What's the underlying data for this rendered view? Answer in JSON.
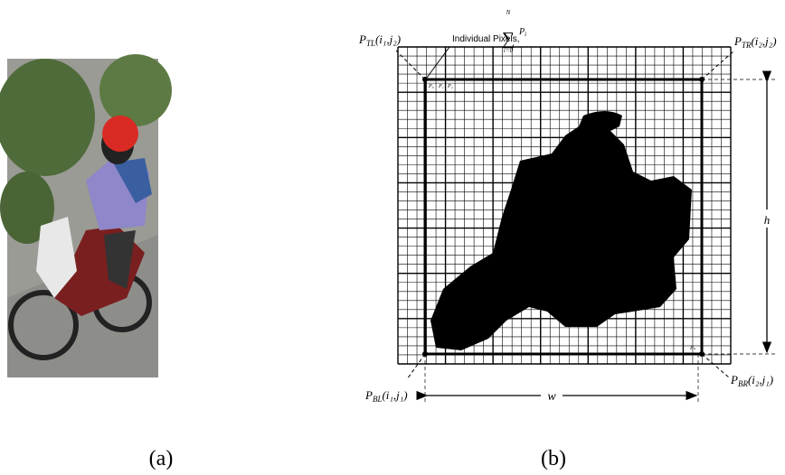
{
  "figure": {
    "panels": [
      {
        "label": "(a)"
      },
      {
        "label": "(b)"
      }
    ]
  },
  "diagram": {
    "corners": [
      {
        "symbol": "P",
        "sub": "TL",
        "coords": "(i₁,j₂)"
      },
      {
        "symbol": "P",
        "sub": "TR",
        "coords": "(i₂,j₂)"
      },
      {
        "symbol": "P",
        "sub": "BL",
        "coords": "(i₁,j₁)"
      },
      {
        "symbol": "P",
        "sub": "BR",
        "coords": "(i₂,j₁)"
      }
    ],
    "annotation": {
      "text": "Individual Pixels,",
      "sum_symbol": "∑",
      "sum_upper": "N",
      "sum_lower": "i=0",
      "sum_term": "P",
      "sum_term_sub": "i"
    },
    "pixel_labels": [
      "P₀",
      "P₁",
      "P₂"
    ],
    "last_pixel": "Pₙ",
    "height_label": "h",
    "width_label": "w"
  }
}
